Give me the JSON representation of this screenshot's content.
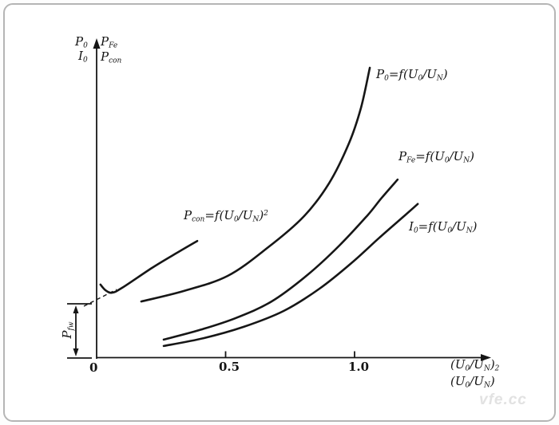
{
  "colors": {
    "ink": "#161616",
    "frame": "#b5b5b5",
    "watermark": "#e2e2e2"
  },
  "watermark_text": "vfe.cc",
  "labels": {
    "y_left_top": [
      [
        "t",
        "P"
      ],
      [
        "sub",
        "0"
      ]
    ],
    "y_left_bottom": [
      [
        "t",
        "I"
      ],
      [
        "sub",
        "0"
      ]
    ],
    "y_right_top": [
      [
        "t",
        "P"
      ],
      [
        "sub",
        "Fe"
      ]
    ],
    "y_right_bottom": [
      [
        "t",
        "P"
      ],
      [
        "sub",
        "con"
      ]
    ],
    "p0_eq": [
      [
        "t",
        "P"
      ],
      [
        "sub",
        "0"
      ],
      [
        "t",
        "=f("
      ],
      [
        "t",
        "U"
      ],
      [
        "sub",
        "0"
      ],
      [
        "t",
        "/U"
      ],
      [
        "sub",
        "N"
      ],
      [
        "t",
        ")"
      ]
    ],
    "pfe_eq": [
      [
        "t",
        "P"
      ],
      [
        "sub",
        "Fe"
      ],
      [
        "t",
        "=f("
      ],
      [
        "t",
        "U"
      ],
      [
        "sub",
        "0"
      ],
      [
        "t",
        "/U"
      ],
      [
        "sub",
        "N"
      ],
      [
        "t",
        ")"
      ]
    ],
    "i0_eq": [
      [
        "t",
        "I"
      ],
      [
        "sub",
        "0"
      ],
      [
        "t",
        "=f("
      ],
      [
        "t",
        "U"
      ],
      [
        "sub",
        "0"
      ],
      [
        "t",
        "/U"
      ],
      [
        "sub",
        "N"
      ],
      [
        "t",
        ")"
      ]
    ],
    "pcon_eq": [
      [
        "t",
        "P"
      ],
      [
        "sub",
        "con"
      ],
      [
        "t",
        "=f("
      ],
      [
        "t",
        "U"
      ],
      [
        "sub",
        "0"
      ],
      [
        "t",
        "/U"
      ],
      [
        "sub",
        "N"
      ],
      [
        "t",
        ")"
      ],
      [
        "sup",
        "2"
      ]
    ],
    "x_unit_top": [
      [
        "t",
        "(U"
      ],
      [
        "sub",
        "0"
      ],
      [
        "t",
        "/U"
      ],
      [
        "sub",
        "N"
      ],
      [
        "t",
        ")"
      ],
      [
        "sub",
        "2"
      ]
    ],
    "x_unit_bottom": [
      [
        "t",
        "(U"
      ],
      [
        "sub",
        "0"
      ],
      [
        "t",
        "/U"
      ],
      [
        "sub",
        "N"
      ],
      [
        "t",
        ")"
      ]
    ],
    "pfw": [
      [
        "t",
        "P"
      ],
      [
        "sub",
        "fw"
      ]
    ]
  },
  "chart_data": {
    "type": "line",
    "title": "",
    "xlabel": "(U0/UN) and (U0/UN)^2",
    "ylabel": "P0, I0, PFe, Pcon (arbitrary units)",
    "xlim": [
      0,
      1.3
    ],
    "ylim_note": "y axis unscaled; values are relative amplitude 0-1",
    "grid": false,
    "x_ticks": [
      {
        "value": 0,
        "label": "0"
      },
      {
        "value": 0.5,
        "label": "0.5"
      },
      {
        "value": 1.0,
        "label": "1.0"
      }
    ],
    "series": [
      {
        "id": "p0",
        "name": "P0 = f(U0/UN)",
        "points": [
          [
            0.173,
            0.197
          ],
          [
            0.337,
            0.233
          ],
          [
            0.508,
            0.285
          ],
          [
            0.662,
            0.381
          ],
          [
            0.802,
            0.488
          ],
          [
            0.901,
            0.603
          ],
          [
            0.978,
            0.74
          ],
          [
            1.025,
            0.863
          ],
          [
            1.059,
            1.0
          ]
        ]
      },
      {
        "id": "pfe",
        "name": "PFe = f(U0/UN)",
        "points": [
          [
            0.26,
            0.066
          ],
          [
            0.399,
            0.099
          ],
          [
            0.539,
            0.14
          ],
          [
            0.678,
            0.197
          ],
          [
            0.817,
            0.288
          ],
          [
            0.941,
            0.389
          ],
          [
            1.05,
            0.493
          ],
          [
            1.105,
            0.553
          ],
          [
            1.167,
            0.616
          ]
        ]
      },
      {
        "id": "i0",
        "name": "I0 = f(U0/UN)",
        "points": [
          [
            0.26,
            0.044
          ],
          [
            0.415,
            0.071
          ],
          [
            0.57,
            0.11
          ],
          [
            0.724,
            0.164
          ],
          [
            0.864,
            0.241
          ],
          [
            0.988,
            0.329
          ],
          [
            1.096,
            0.416
          ],
          [
            1.189,
            0.488
          ],
          [
            1.245,
            0.532
          ]
        ]
      },
      {
        "id": "pcon",
        "name": "Pcon = f(U0/UN)^2",
        "points": [
          [
            0.015,
            0.255
          ],
          [
            0.034,
            0.236
          ],
          [
            0.059,
            0.227
          ],
          [
            0.099,
            0.244
          ],
          [
            0.214,
            0.312
          ],
          [
            0.307,
            0.362
          ],
          [
            0.39,
            0.405
          ]
        ]
      }
    ],
    "annotations": [
      {
        "id": "pfw",
        "name": "Pfw friction-windage loss intercept",
        "y_level": 0.189,
        "note": "dashed extrapolation of Pcon curve to the vertical axis; bracket with double arrow marks Pfw"
      }
    ]
  }
}
